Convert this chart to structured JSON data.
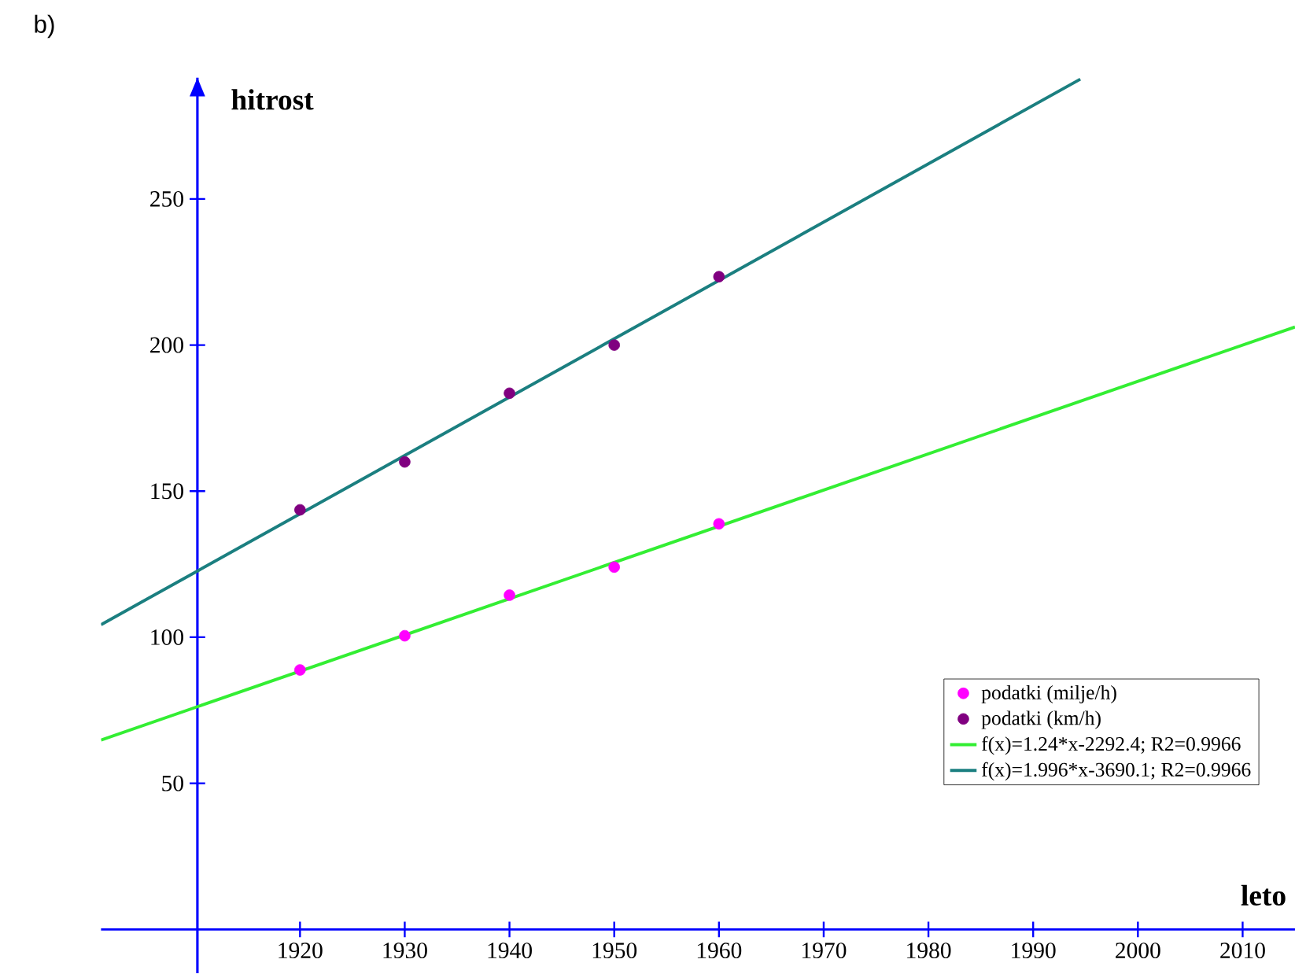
{
  "chart_data": {
    "type": "scatter",
    "xlabel": "leto",
    "ylabel": "hitrost",
    "annotations": [
      "b)"
    ],
    "x": [
      1920,
      1930,
      1940,
      1950,
      1960
    ],
    "series": [
      {
        "name": "podatki (milje/h)",
        "type": "scatter",
        "color": "#ff00ff",
        "marker": "circle",
        "values": [
          88.8,
          100.5,
          114.4,
          124,
          138.8
        ]
      },
      {
        "name": "podatki (km/h)",
        "color": "#800080",
        "marker": "circle",
        "values": [
          143.6,
          160,
          183.5,
          200,
          223.4
        ]
      },
      {
        "name": "f(x)=1.24*x-2292.4; R2=0.9966",
        "type": "line",
        "color": "#33ee33",
        "marker": "none",
        "x": [
          1901,
          2015
        ],
        "values": [
          64.8,
          206.2
        ]
      },
      {
        "name": "f(x)=1.996*x-3690.1; R2=0.9966",
        "type": "line",
        "color": "#1b7f80",
        "marker": "none",
        "x": [
          1901,
          1994.5
        ],
        "values": [
          104.3,
          291
        ]
      }
    ],
    "xlim": [
      1901,
      2015
    ],
    "ylim": [
      -15,
      291.5
    ],
    "xticks": [
      1920,
      1930,
      1940,
      1950,
      1960,
      1970,
      1980,
      1990,
      2000,
      2010
    ],
    "yticks": [
      50,
      100,
      150,
      200,
      250
    ],
    "legend": "right"
  }
}
